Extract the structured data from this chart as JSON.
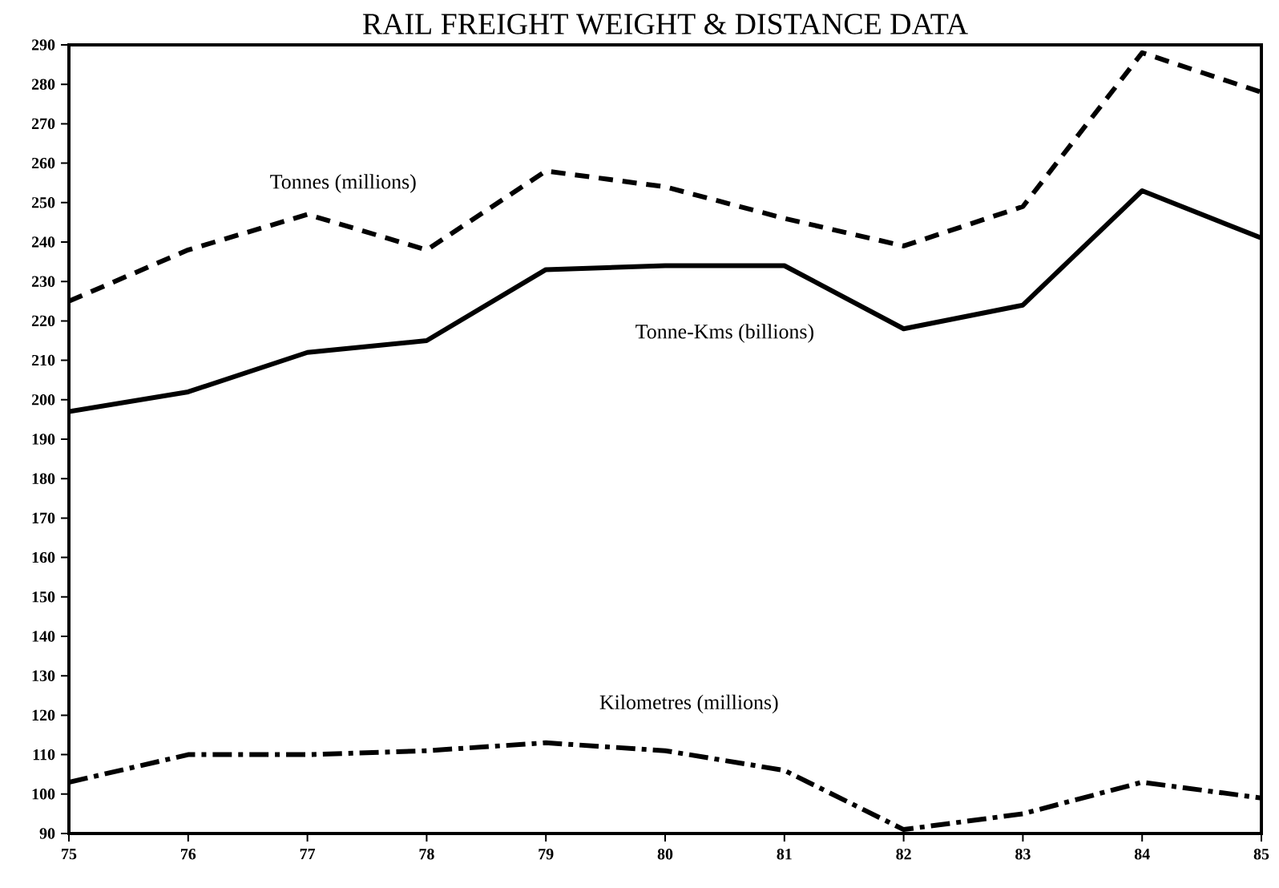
{
  "chart_data": {
    "type": "line",
    "title": "RAIL FREIGHT WEIGHT & DISTANCE DATA",
    "x": [
      75,
      76,
      77,
      78,
      79,
      80,
      81,
      82,
      83,
      84,
      85
    ],
    "xlim": [
      75,
      85
    ],
    "xticks": [
      75,
      76,
      77,
      78,
      79,
      80,
      81,
      82,
      83,
      84,
      85
    ],
    "ylim": [
      90,
      290
    ],
    "yticks": [
      90,
      100,
      110,
      120,
      130,
      140,
      150,
      160,
      170,
      180,
      190,
      200,
      210,
      220,
      230,
      240,
      250,
      260,
      270,
      280,
      290
    ],
    "grid": false,
    "legend": false,
    "marker": "none",
    "series": [
      {
        "name": "Tonnes (millions)",
        "color": "#000000",
        "line_style": "dashed",
        "values": [
          225,
          238,
          247,
          238,
          258,
          254,
          246,
          239,
          249,
          288,
          278
        ]
      },
      {
        "name": "Tonne-Kms (billions)",
        "color": "#000000",
        "line_style": "solid",
        "values": [
          197,
          202,
          212,
          215,
          233,
          234,
          234,
          218,
          224,
          253,
          241
        ]
      },
      {
        "name": "Kilometres (millions)",
        "color": "#000000",
        "line_style": "dashdot",
        "values": [
          103,
          110,
          110,
          111,
          113,
          111,
          106,
          91,
          95,
          103,
          99
        ]
      }
    ]
  }
}
